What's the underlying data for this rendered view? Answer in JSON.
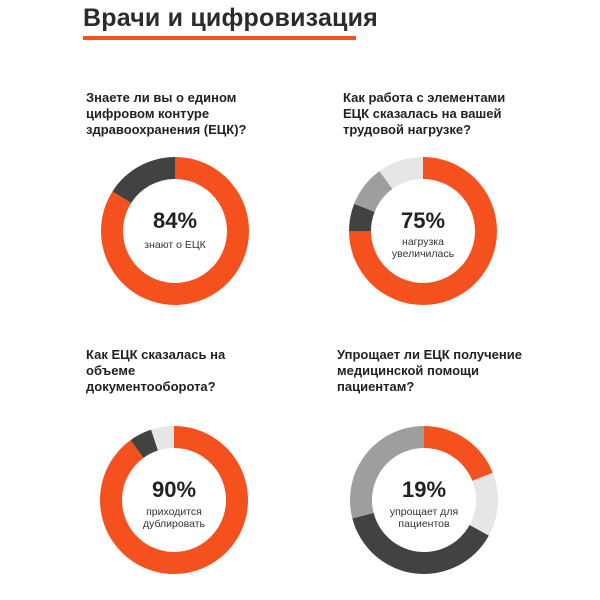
{
  "title": "Врачи и цифровизация",
  "colors": {
    "accent": "#f4511e",
    "dark": "#424242",
    "mid": "#9e9e9e",
    "light": "#e6e6e6"
  },
  "chart_data": [
    {
      "type": "pie",
      "question": "Знаете ли вы о едином цифровом контуре здравоохранения (ЕЦК)?",
      "center_value": "84%",
      "center_label": "знают о ЕЦК",
      "slices": [
        {
          "value": 84,
          "color": "#f4511e"
        },
        {
          "value": 16,
          "color": "#424242"
        }
      ]
    },
    {
      "type": "pie",
      "question": "Как работа с элементами ЕЦК сказалась на вашей трудовой нагрузке?",
      "center_value": "75%",
      "center_label": "нагрузка увеличилась",
      "slices": [
        {
          "value": 75,
          "color": "#f4511e"
        },
        {
          "value": 6,
          "color": "#424242"
        },
        {
          "value": 9,
          "color": "#9e9e9e"
        },
        {
          "value": 10,
          "color": "#e6e6e6"
        }
      ]
    },
    {
      "type": "pie",
      "question": "Как ЕЦК сказалась на объеме документооборота?",
      "center_value": "90%",
      "center_label": "приходится дублировать",
      "slices": [
        {
          "value": 90,
          "color": "#f4511e"
        },
        {
          "value": 5,
          "color": "#424242"
        },
        {
          "value": 5,
          "color": "#e6e6e6"
        }
      ]
    },
    {
      "type": "pie",
      "question": "Упрощает ли ЕЦК получение медицинской помощи пациентам?",
      "center_value": "19%",
      "center_label": "упрощает для пациентов",
      "slices": [
        {
          "value": 19,
          "color": "#f4511e"
        },
        {
          "value": 14,
          "color": "#e6e6e6"
        },
        {
          "value": 38,
          "color": "#424242"
        },
        {
          "value": 29,
          "color": "#9e9e9e"
        }
      ]
    }
  ]
}
